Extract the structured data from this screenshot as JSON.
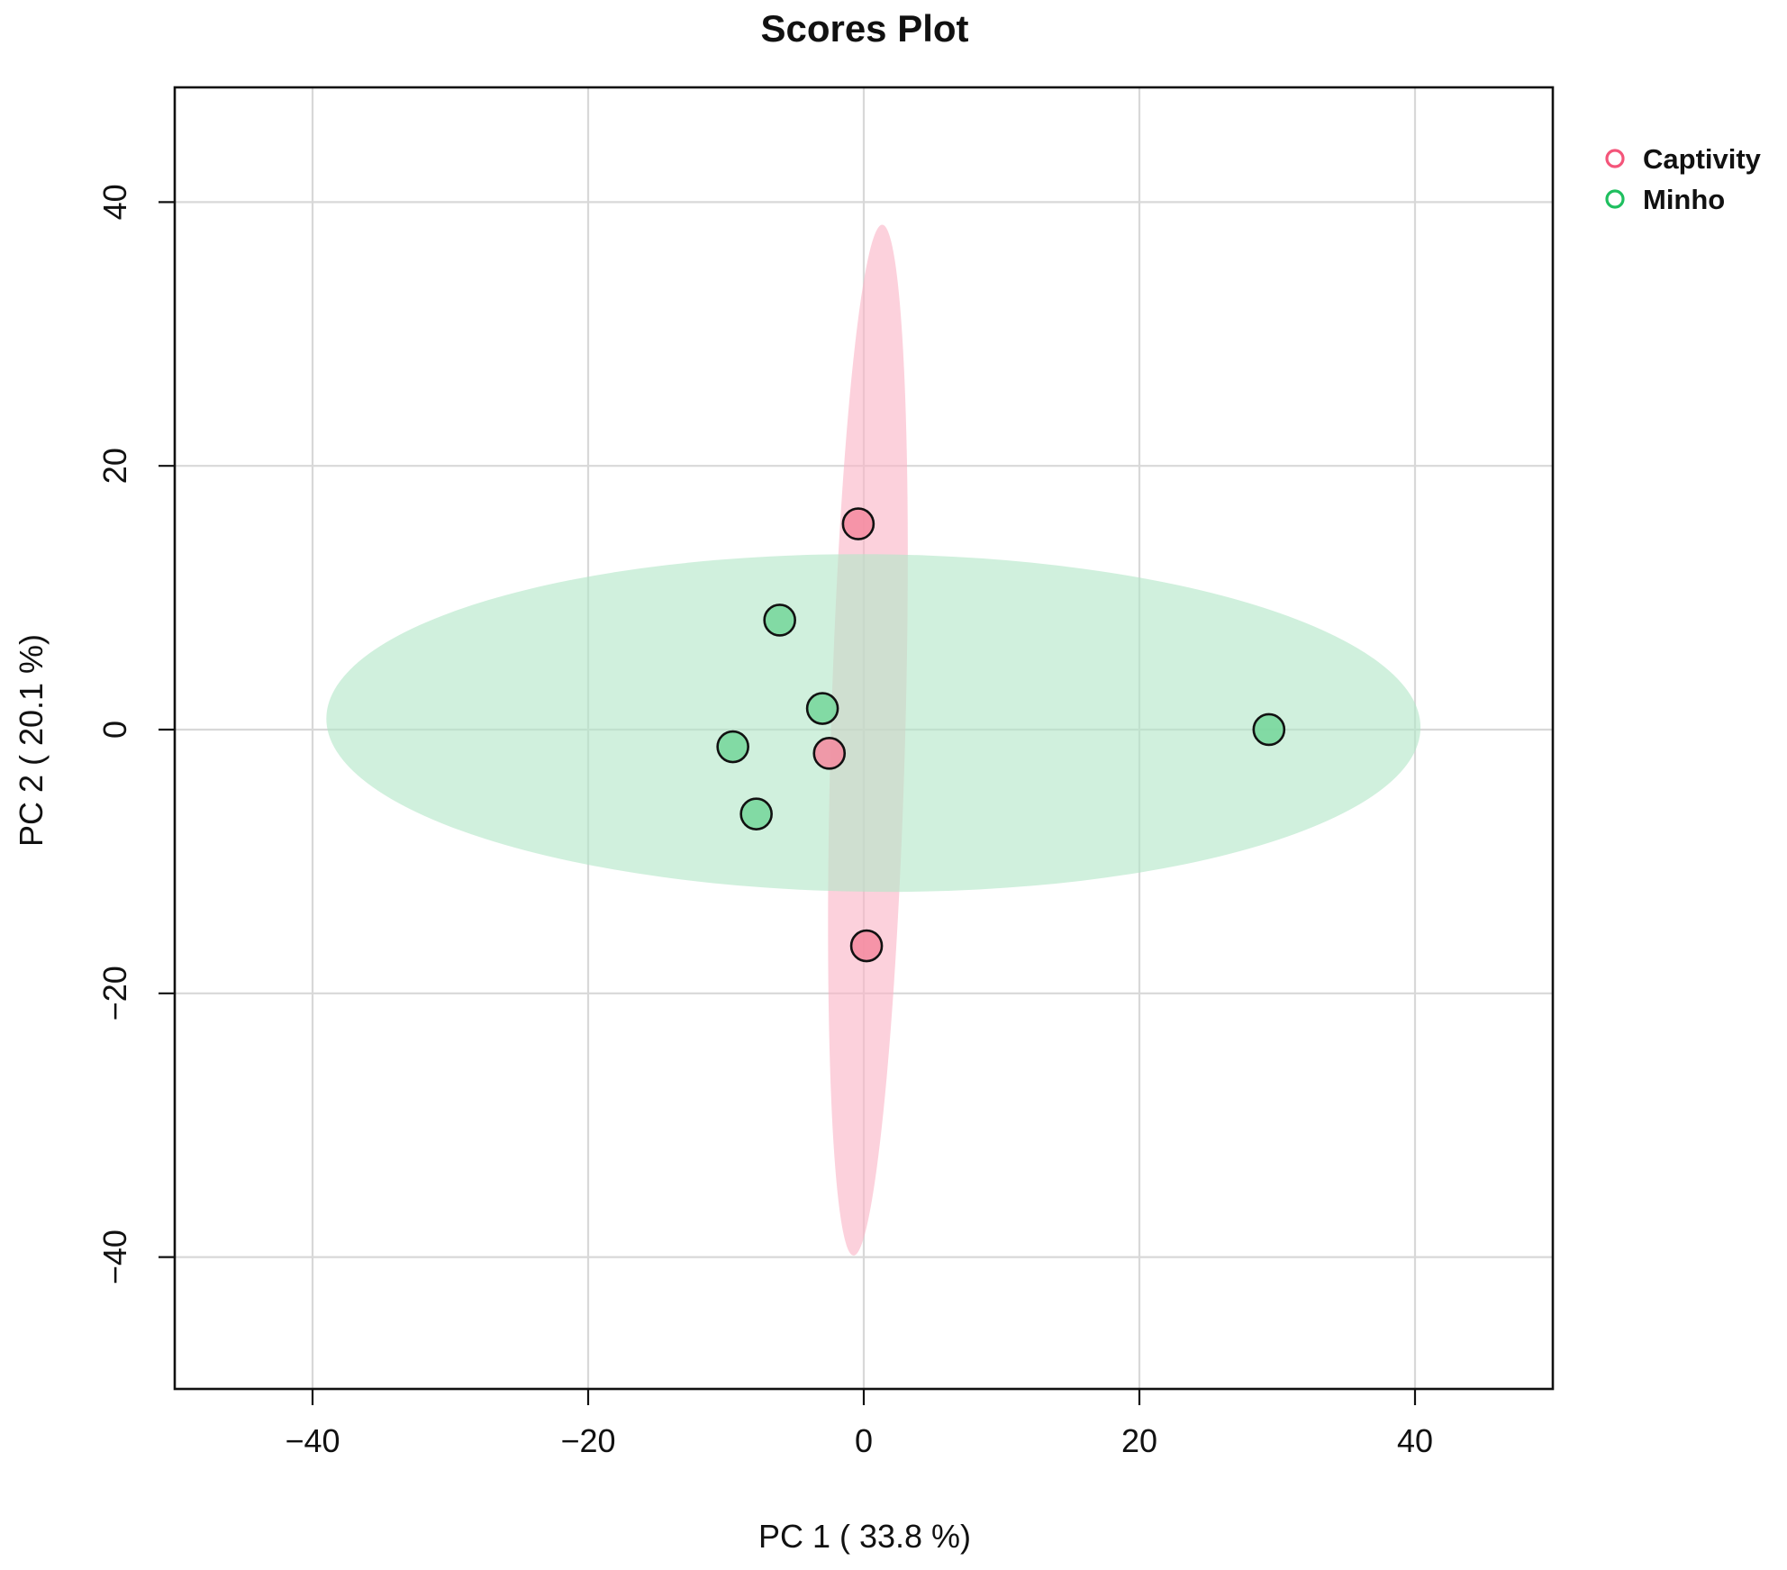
{
  "chart_data": {
    "type": "scatter",
    "title": "Scores Plot",
    "xlabel": "PC 1 ( 33.8 %)",
    "ylabel": "PC 2 ( 20.1 %)",
    "xlim": [
      -50,
      50
    ],
    "ylim": [
      -50,
      48.7
    ],
    "xticks": [
      -40,
      -20,
      0,
      20,
      40
    ],
    "yticks": [
      40,
      20,
      0,
      -20,
      -40
    ],
    "xtick_labels": [
      "−40",
      "−20",
      "0",
      "20",
      "40"
    ],
    "ytick_labels": [
      "40",
      "20",
      "0",
      "−20",
      "−40"
    ],
    "grid": true,
    "legend_position": "top-right",
    "series": [
      {
        "name": "Captivity",
        "color": "#f4557a",
        "fill": "#f5899f",
        "ellipse_fill": "#fab4c6",
        "points": [
          {
            "x": -0.4,
            "y": 15.6
          },
          {
            "x": -2.5,
            "y": -1.8
          },
          {
            "x": 0.2,
            "y": -16.4
          }
        ],
        "ellipse": {
          "cx": 0.3,
          "cy": -0.8,
          "rx": 2.7,
          "ry": 39.1,
          "angle": 1.6
        }
      },
      {
        "name": "Minho",
        "color": "#1fbf5f",
        "fill": "#74d69a",
        "ellipse_fill": "#b3e6c8",
        "points": [
          {
            "x": -6.1,
            "y": 8.3
          },
          {
            "x": -3.0,
            "y": 1.6
          },
          {
            "x": -9.5,
            "y": -1.3
          },
          {
            "x": -7.8,
            "y": -6.4
          },
          {
            "x": 29.4,
            "y": 0.0
          }
        ],
        "ellipse": {
          "cx": 0.7,
          "cy": 0.5,
          "rx": 39.7,
          "ry": 12.8,
          "angle": 0.5
        }
      }
    ]
  }
}
